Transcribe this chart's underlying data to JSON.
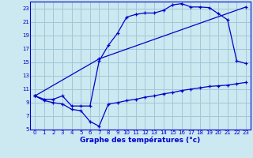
{
  "bg_color": "#cce8f0",
  "grid_color": "#a0c8d8",
  "line_color": "#0000cc",
  "xlabel": "Graphe des températures (°c)",
  "xlim": [
    -0.5,
    23.5
  ],
  "ylim": [
    5,
    24
  ],
  "yticks": [
    5,
    7,
    9,
    11,
    13,
    15,
    17,
    19,
    21,
    23
  ],
  "xticks": [
    0,
    1,
    2,
    3,
    4,
    5,
    6,
    7,
    8,
    9,
    10,
    11,
    12,
    13,
    14,
    15,
    16,
    17,
    18,
    19,
    20,
    21,
    22,
    23
  ],
  "curve1_x": [
    0,
    1,
    2,
    3,
    4,
    5,
    6,
    7,
    8,
    9,
    10,
    11,
    12,
    13,
    14,
    15,
    16,
    17,
    18,
    19,
    20,
    21,
    22,
    23
  ],
  "curve1_y": [
    10.0,
    9.5,
    9.5,
    10.0,
    8.5,
    8.5,
    8.5,
    15.2,
    17.5,
    19.3,
    21.7,
    22.1,
    22.3,
    22.3,
    22.7,
    23.5,
    23.7,
    23.2,
    23.2,
    23.1,
    22.2,
    21.3,
    15.2,
    14.8
  ],
  "curve2_x": [
    0,
    7,
    23
  ],
  "curve2_y": [
    10.0,
    15.5,
    23.2
  ],
  "curve3_x": [
    0,
    1,
    2,
    3,
    4,
    5,
    6,
    7,
    8,
    9,
    10,
    11,
    12,
    13,
    14,
    15,
    16,
    17,
    18,
    19,
    20,
    21,
    22,
    23
  ],
  "curve3_y": [
    10.0,
    9.3,
    9.0,
    8.8,
    8.0,
    7.8,
    6.2,
    5.5,
    8.8,
    9.0,
    9.3,
    9.5,
    9.8,
    10.0,
    10.3,
    10.5,
    10.8,
    11.0,
    11.2,
    11.4,
    11.5,
    11.6,
    11.8,
    12.0
  ]
}
